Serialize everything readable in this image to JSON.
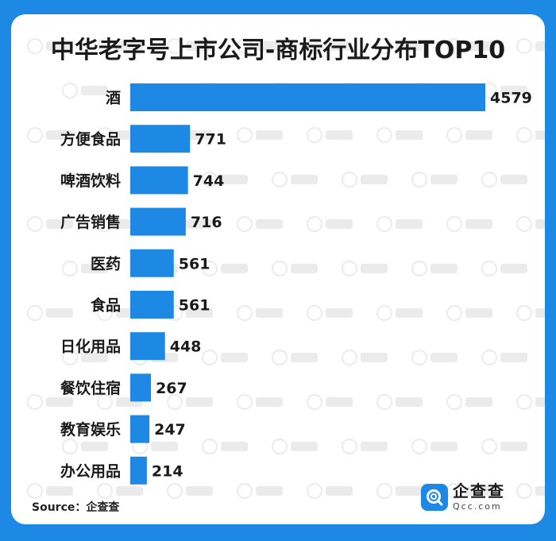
{
  "title": "中华老字号上市公司-商标行业分布TOP10",
  "source": "Source：企查查",
  "logo": {
    "cn": "企查查",
    "en": "Qcc.com"
  },
  "colors": {
    "bar": "#1E88E5",
    "background": "#1E88E5",
    "card": "#FFFFFF",
    "text": "#1A1A1A"
  },
  "chart_data": {
    "type": "bar",
    "orientation": "horizontal",
    "title": "中华老字号上市公司-商标行业分布TOP10",
    "categories": [
      "酒",
      "方便食品",
      "啤酒饮料",
      "广告销售",
      "医药",
      "食品",
      "日化用品",
      "餐饮住宿",
      "教育娱乐",
      "办公用品"
    ],
    "values": [
      4579,
      771,
      744,
      716,
      561,
      561,
      448,
      267,
      247,
      214
    ],
    "xlim": [
      0,
      4579
    ],
    "grid": false,
    "data_labels": true
  }
}
